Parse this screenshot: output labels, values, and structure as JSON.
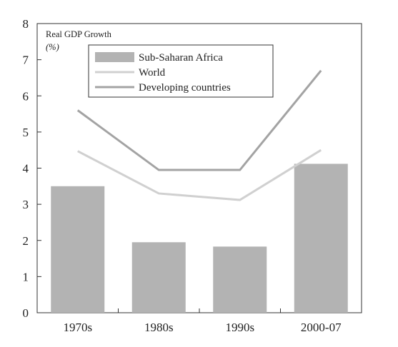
{
  "chart_data": {
    "type": "bar",
    "title": "",
    "ylabel": "Real GDP Growth",
    "yunit": "(%)",
    "xlabel": "",
    "categories": [
      "1970s",
      "1980s",
      "1990s",
      "2000-07"
    ],
    "ylim": [
      0,
      8
    ],
    "yticks": [
      "0",
      "1",
      "2",
      "3",
      "4",
      "5",
      "6",
      "7",
      "8"
    ],
    "grid": false,
    "legend_position": "top-center",
    "series": [
      {
        "name": "Sub-Saharan Africa",
        "kind": "bar",
        "color": "#b3b3b3",
        "values": [
          3.5,
          1.95,
          1.83,
          4.12
        ]
      },
      {
        "name": "World",
        "kind": "line",
        "color": "#d0d0d0",
        "values": [
          4.47,
          3.3,
          3.12,
          4.5
        ]
      },
      {
        "name": "Developing countries",
        "kind": "line",
        "color": "#a3a3a3",
        "values": [
          5.6,
          3.95,
          3.95,
          6.7
        ]
      }
    ]
  }
}
